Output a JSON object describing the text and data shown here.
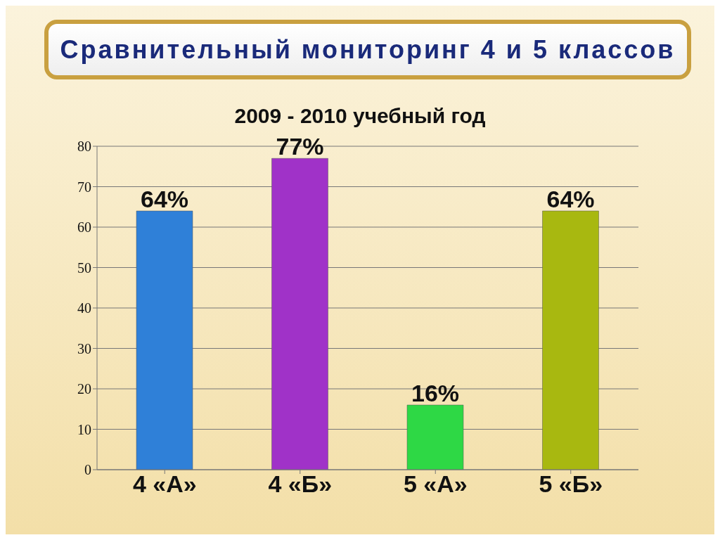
{
  "chart_data": {
    "type": "bar",
    "title": "Сравнительный мониторинг 4 и 5 классов",
    "subtitle": "2009 - 2010 учебный год",
    "categories": [
      "4 «А»",
      "4 «Б»",
      "5 «А»",
      "5 «Б»"
    ],
    "values": [
      64,
      77,
      16,
      64
    ],
    "colors": [
      "#2f80d8",
      "#a032c8",
      "#2ed845",
      "#a8b810"
    ],
    "value_labels": [
      "64%",
      "77%",
      "16%",
      "64%"
    ],
    "ylim": [
      0,
      80
    ],
    "yticks": [
      0,
      10,
      20,
      30,
      40,
      50,
      60,
      70,
      80
    ],
    "grid": "y"
  }
}
